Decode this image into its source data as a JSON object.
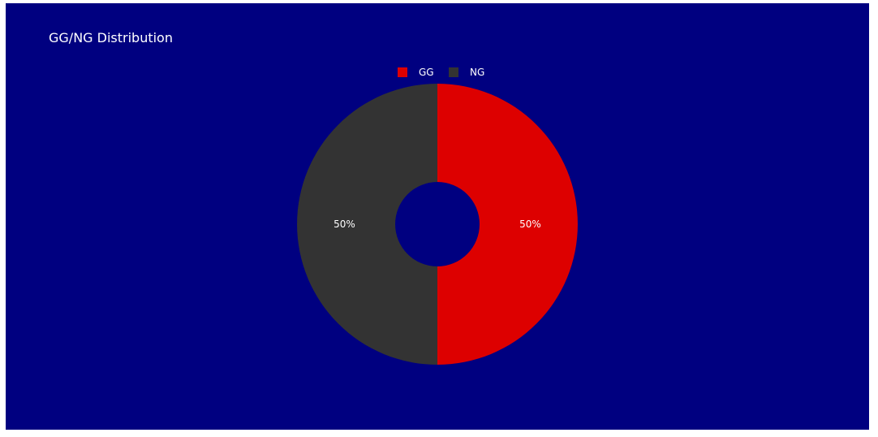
{
  "chart_data": {
    "type": "pie",
    "title": "GG/NG Distribution",
    "hole": true,
    "legend_position": "top-center",
    "background_color": "#000080",
    "slices": [
      {
        "label": "GG",
        "value": 50,
        "percent_label": "50%",
        "color": "#dd0000"
      },
      {
        "label": "NG",
        "value": 50,
        "percent_label": "50%",
        "color": "#333333"
      }
    ]
  }
}
